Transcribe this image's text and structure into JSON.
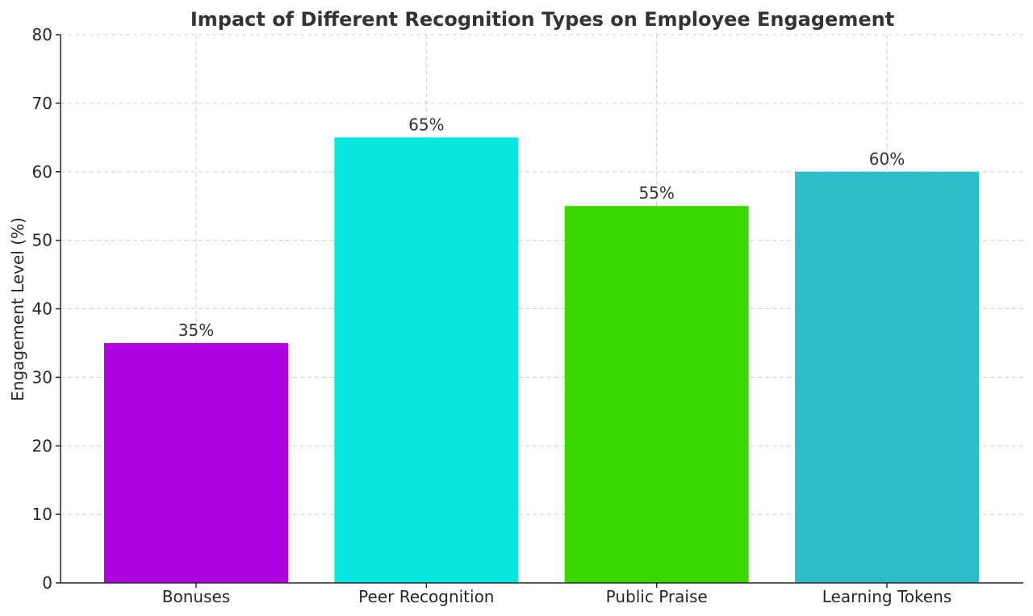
{
  "chart_data": {
    "type": "bar",
    "title": "Impact of Different Recognition Types on Employee Engagement",
    "xlabel": "",
    "ylabel": "Engagement Level (%)",
    "categories": [
      "Bonuses",
      "Peer Recognition",
      "Public Praise",
      "Learning Tokens"
    ],
    "values": [
      35,
      65,
      55,
      60
    ],
    "data_labels": [
      "35%",
      "65%",
      "55%",
      "60%"
    ],
    "colors": [
      "#b100e0",
      "#08e6de",
      "#38d800",
      "#2cbfca"
    ],
    "ylim": [
      0,
      80
    ],
    "yticks": [
      0,
      10,
      20,
      30,
      40,
      50,
      60,
      70,
      80
    ],
    "ytick_labels": [
      "0",
      "10",
      "20",
      "30",
      "40",
      "50",
      "60",
      "70",
      "80"
    ],
    "grid": true
  }
}
